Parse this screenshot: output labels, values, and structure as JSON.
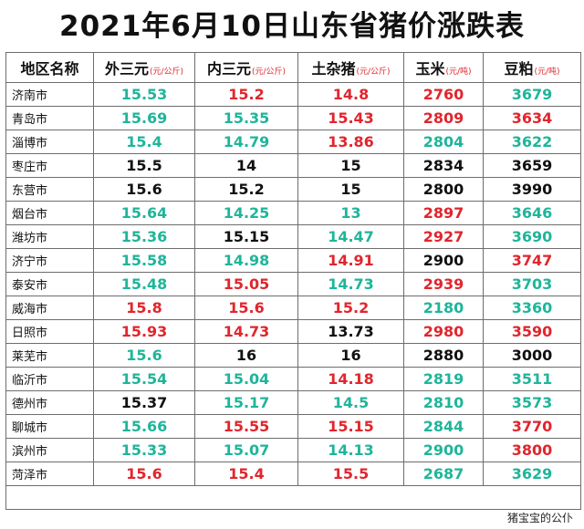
{
  "title": "2021年6月10日山东省猪价涨跌表",
  "header": {
    "region": "地区名称",
    "outer": "外三元",
    "outer_unit": "(元/公斤)",
    "inner": "内三元",
    "inner_unit": "(元/公斤)",
    "mixed": "土杂猪",
    "mixed_unit": "(元/公斤)",
    "corn": "玉米",
    "corn_unit": "(元/吨)",
    "soy": "豆粕",
    "soy_unit": "(元/吨)"
  },
  "colors": {
    "green": "#1fb59a",
    "red": "#e0262d",
    "black": "#111111"
  },
  "rows": [
    {
      "city": "济南市",
      "outer": "15.53",
      "outer_c": "green",
      "inner": "15.2",
      "inner_c": "red",
      "mixed": "14.8",
      "mixed_c": "red",
      "corn": "2760",
      "corn_c": "red",
      "soy": "3679",
      "soy_c": "green"
    },
    {
      "city": "青岛市",
      "outer": "15.69",
      "outer_c": "green",
      "inner": "15.35",
      "inner_c": "green",
      "mixed": "15.43",
      "mixed_c": "red",
      "corn": "2809",
      "corn_c": "red",
      "soy": "3634",
      "soy_c": "red"
    },
    {
      "city": "淄博市",
      "outer": "15.4",
      "outer_c": "green",
      "inner": "14.79",
      "inner_c": "green",
      "mixed": "13.86",
      "mixed_c": "red",
      "corn": "2804",
      "corn_c": "green",
      "soy": "3622",
      "soy_c": "green"
    },
    {
      "city": "枣庄市",
      "outer": "15.5",
      "outer_c": "black",
      "inner": "14",
      "inner_c": "black",
      "mixed": "15",
      "mixed_c": "black",
      "corn": "2834",
      "corn_c": "black",
      "soy": "3659",
      "soy_c": "black"
    },
    {
      "city": "东营市",
      "outer": "15.6",
      "outer_c": "black",
      "inner": "15.2",
      "inner_c": "black",
      "mixed": "15",
      "mixed_c": "black",
      "corn": "2800",
      "corn_c": "black",
      "soy": "3990",
      "soy_c": "black"
    },
    {
      "city": "烟台市",
      "outer": "15.64",
      "outer_c": "green",
      "inner": "14.25",
      "inner_c": "green",
      "mixed": "13",
      "mixed_c": "green",
      "corn": "2897",
      "corn_c": "red",
      "soy": "3646",
      "soy_c": "green"
    },
    {
      "city": "潍坊市",
      "outer": "15.36",
      "outer_c": "green",
      "inner": "15.15",
      "inner_c": "black",
      "mixed": "14.47",
      "mixed_c": "green",
      "corn": "2927",
      "corn_c": "red",
      "soy": "3690",
      "soy_c": "green"
    },
    {
      "city": "济宁市",
      "outer": "15.58",
      "outer_c": "green",
      "inner": "14.98",
      "inner_c": "green",
      "mixed": "14.91",
      "mixed_c": "red",
      "corn": "2900",
      "corn_c": "black",
      "soy": "3747",
      "soy_c": "red"
    },
    {
      "city": "泰安市",
      "outer": "15.48",
      "outer_c": "green",
      "inner": "15.05",
      "inner_c": "red",
      "mixed": "14.73",
      "mixed_c": "green",
      "corn": "2939",
      "corn_c": "red",
      "soy": "3703",
      "soy_c": "green"
    },
    {
      "city": "威海市",
      "outer": "15.8",
      "outer_c": "red",
      "inner": "15.6",
      "inner_c": "red",
      "mixed": "15.2",
      "mixed_c": "red",
      "corn": "2180",
      "corn_c": "green",
      "soy": "3360",
      "soy_c": "green"
    },
    {
      "city": "日照市",
      "outer": "15.93",
      "outer_c": "red",
      "inner": "14.73",
      "inner_c": "red",
      "mixed": "13.73",
      "mixed_c": "black",
      "corn": "2980",
      "corn_c": "red",
      "soy": "3590",
      "soy_c": "red"
    },
    {
      "city": "莱芜市",
      "outer": "15.6",
      "outer_c": "green",
      "inner": "16",
      "inner_c": "black",
      "mixed": "16",
      "mixed_c": "black",
      "corn": "2880",
      "corn_c": "black",
      "soy": "3000",
      "soy_c": "black"
    },
    {
      "city": "临沂市",
      "outer": "15.54",
      "outer_c": "green",
      "inner": "15.04",
      "inner_c": "green",
      "mixed": "14.18",
      "mixed_c": "red",
      "corn": "2819",
      "corn_c": "green",
      "soy": "3511",
      "soy_c": "green"
    },
    {
      "city": "德州市",
      "outer": "15.37",
      "outer_c": "black",
      "inner": "15.17",
      "inner_c": "green",
      "mixed": "14.5",
      "mixed_c": "green",
      "corn": "2810",
      "corn_c": "green",
      "soy": "3573",
      "soy_c": "green"
    },
    {
      "city": "聊城市",
      "outer": "15.66",
      "outer_c": "green",
      "inner": "15.55",
      "inner_c": "red",
      "mixed": "15.15",
      "mixed_c": "red",
      "corn": "2844",
      "corn_c": "green",
      "soy": "3770",
      "soy_c": "red"
    },
    {
      "city": "滨州市",
      "outer": "15.33",
      "outer_c": "green",
      "inner": "15.07",
      "inner_c": "green",
      "mixed": "14.13",
      "mixed_c": "green",
      "corn": "2900",
      "corn_c": "green",
      "soy": "3800",
      "soy_c": "red"
    },
    {
      "city": "菏泽市",
      "outer": "15.6",
      "outer_c": "red",
      "inner": "15.4",
      "inner_c": "red",
      "mixed": "15.5",
      "mixed_c": "red",
      "corn": "2687",
      "corn_c": "green",
      "soy": "3629",
      "soy_c": "green"
    }
  ],
  "footer": "猪宝宝的公仆"
}
